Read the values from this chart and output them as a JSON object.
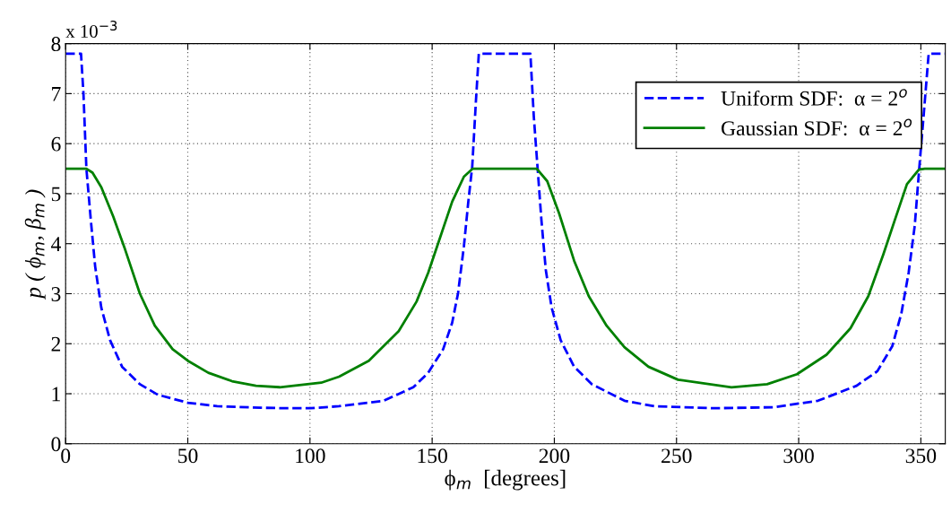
{
  "chart_data": {
    "type": "line",
    "xlabel": "ϕ$_{m}$  [degrees]",
    "ylabel": "p ( ϕ$_{m}$, β$_{m}$ )",
    "annotations": [
      "x 10$^{−3}$"
    ],
    "xlim": [
      0,
      360
    ],
    "xticks": [
      0,
      50,
      100,
      150,
      200,
      250,
      300,
      350
    ],
    "ylim": [
      0,
      8
    ],
    "yticks": [
      0,
      1,
      2,
      3,
      4,
      5,
      6,
      7,
      8
    ],
    "grid": true,
    "legend": "top right",
    "marker": "none",
    "series": [
      {
        "name": "Uniform SDF:  α = 2$^{o}$",
        "color": "#0000ff",
        "line_style": "dashed",
        "x": [
          0,
          6.3,
          7.3,
          8.5,
          10.3,
          12.1,
          14.6,
          18.2,
          23.1,
          30.4,
          37.7,
          50,
          62,
          80,
          90,
          100,
          111.9,
          130.2,
          142.3,
          148.4,
          154.5,
          158.2,
          160.6,
          163.0,
          164.8,
          166.4,
          167.9,
          169.1,
          190.2,
          191.6,
          193.2,
          194.7,
          196.5,
          198.9,
          202.6,
          208.1,
          215.4,
          228.7,
          240.9,
          265.2,
          289.6,
          307.9,
          323.7,
          332.2,
          338.3,
          342,
          345,
          347.5,
          349.3,
          351.1,
          353.2,
          360
        ],
        "values": [
          7.8,
          7.8,
          7.0,
          5.5,
          4.48,
          3.54,
          2.72,
          2.07,
          1.54,
          1.19,
          0.98,
          0.82,
          0.75,
          0.72,
          0.71,
          0.71,
          0.75,
          0.86,
          1.13,
          1.42,
          1.89,
          2.42,
          3.01,
          3.95,
          4.84,
          5.54,
          6.84,
          7.8,
          7.8,
          6.54,
          5.48,
          4.48,
          3.48,
          2.72,
          2.07,
          1.54,
          1.19,
          0.86,
          0.75,
          0.71,
          0.73,
          0.86,
          1.16,
          1.45,
          1.95,
          2.6,
          3.42,
          4.36,
          5.48,
          6.54,
          7.8,
          7.8
        ]
      },
      {
        "name": "Gaussian SDF:  α = 2$^{o}$",
        "color": "#008000",
        "line_style": "solid",
        "x": [
          0,
          8.5,
          11,
          14.6,
          19.5,
          24.3,
          30.4,
          36.5,
          43.8,
          50,
          58.4,
          68.1,
          77.9,
          87.6,
          104.6,
          111.9,
          124.1,
          136.3,
          143.6,
          148.4,
          153.3,
          158.2,
          163.0,
          166.6,
          192.8,
          197.1,
          202,
          208.1,
          214.1,
          221.4,
          228.7,
          238.5,
          250.6,
          272.5,
          287.1,
          299.3,
          311.4,
          321.2,
          328.5,
          334.6,
          339.4,
          344.3,
          349.2,
          351.6,
          360
        ],
        "values": [
          5.5,
          5.5,
          5.42,
          5.13,
          4.54,
          3.89,
          3.0,
          2.36,
          1.89,
          1.66,
          1.42,
          1.25,
          1.16,
          1.13,
          1.22,
          1.34,
          1.66,
          2.25,
          2.84,
          3.42,
          4.13,
          4.84,
          5.34,
          5.5,
          5.5,
          5.25,
          4.6,
          3.66,
          2.95,
          2.36,
          1.93,
          1.54,
          1.28,
          1.13,
          1.19,
          1.39,
          1.78,
          2.31,
          2.95,
          3.78,
          4.48,
          5.19,
          5.48,
          5.5,
          5.5
        ]
      }
    ]
  }
}
